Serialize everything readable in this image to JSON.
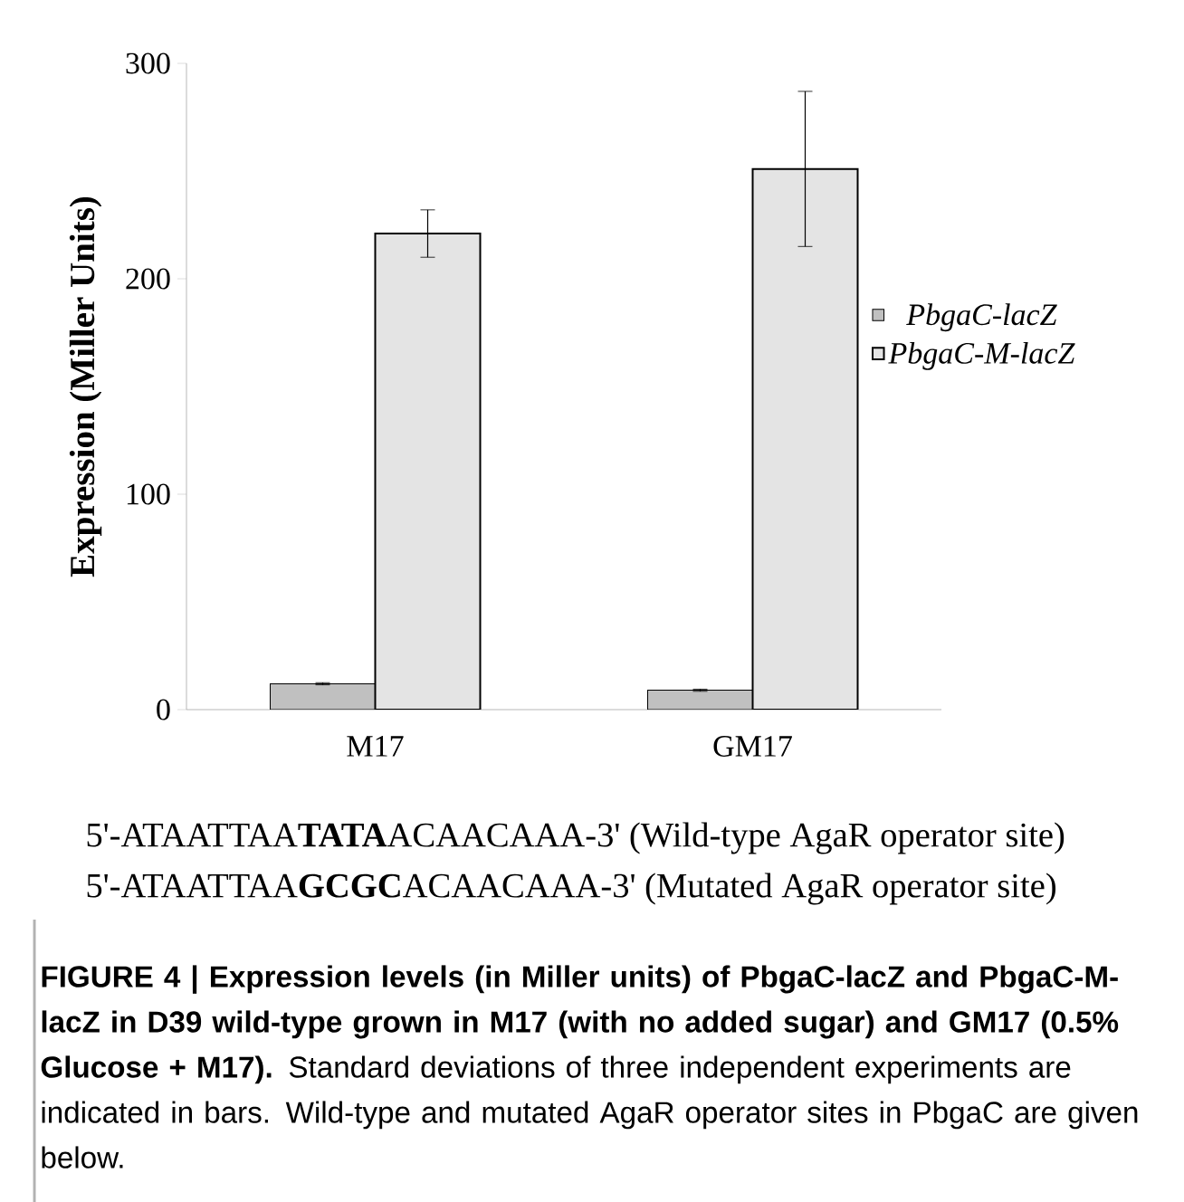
{
  "chart_data": {
    "type": "bar",
    "ylabel": "Expression  (Miller Units)",
    "categories": [
      "M17",
      "GM17"
    ],
    "series": [
      {
        "name": "PbgaC-lacZ",
        "color": "#c0c0c0",
        "values": [
          12,
          9
        ],
        "errors": [
          0.5,
          0.5
        ]
      },
      {
        "name": "PbgaC-M-lacZ",
        "color": "#e4e4e4",
        "values": [
          221,
          251
        ],
        "errors": [
          11,
          36
        ]
      }
    ],
    "ylim": [
      0,
      300
    ],
    "yticks": [
      0,
      100,
      200,
      300
    ],
    "grid": false,
    "legend": "right",
    "annotations": [
      "5'-ATAATTAA**TATA**ACAACAAA-3' (Wild-type AgaR operator site)",
      "5'-ATAATTAA**GCGC**ACAACAAA-3' (Mutated AgaR operator site)",
      "**FIGURE 4 | Expression levels (in Miller units) of PbgaC-lacZ and PbgaC-M-lacZ in D39 wild-type grown in M17 (with no added sugar) and GM17 (0.5% Glucose + M17).** Standard deviations of three independent experiments are indicated in bars. Wild-type and mutated AgaR operator sites in PbgaC are given below."
    ]
  }
}
